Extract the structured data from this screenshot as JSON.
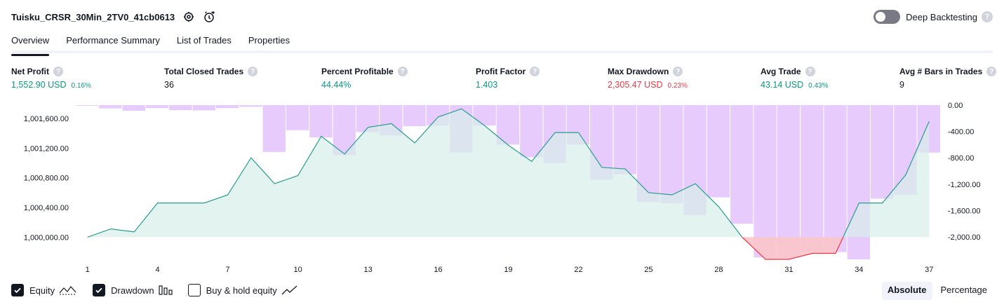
{
  "header": {
    "title": "Tuisku_CRSR_30Min_2TV0_41cb0613",
    "deep_backtesting_label": "Deep Backtesting",
    "deep_backtesting_enabled": false,
    "help_glyph": "?"
  },
  "tabs": [
    {
      "label": "Overview",
      "active": true
    },
    {
      "label": "Performance Summary",
      "active": false
    },
    {
      "label": "List of Trades",
      "active": false
    },
    {
      "label": "Properties",
      "active": false
    }
  ],
  "metrics": [
    {
      "label": "Net Profit",
      "value": "1,552.90 USD",
      "pct": "0.16%",
      "color": "green"
    },
    {
      "label": "Total Closed Trades",
      "value": "36",
      "pct": "",
      "color": "dark"
    },
    {
      "label": "Percent Profitable",
      "value": "44.44%",
      "pct": "",
      "color": "green"
    },
    {
      "label": "Profit Factor",
      "value": "1.403",
      "pct": "",
      "color": "green"
    },
    {
      "label": "Max Drawdown",
      "value": "2,305.47 USD",
      "pct": "0.23%",
      "color": "red"
    },
    {
      "label": "Avg Trade",
      "value": "43.14 USD",
      "pct": "0.43%",
      "color": "green"
    },
    {
      "label": "Avg # Bars in Trades",
      "value": "9",
      "pct": "",
      "color": "dark"
    }
  ],
  "chart_data": {
    "type": "line",
    "x_ticks": [
      "1",
      "4",
      "7",
      "10",
      "13",
      "16",
      "19",
      "22",
      "25",
      "28",
      "31",
      "34",
      "37"
    ],
    "left_axis": {
      "ticks": [
        "1,000,000.00",
        "1,000,400.00",
        "1,000,800.00",
        "1,001,200.00",
        "1,001,600.00"
      ],
      "ylim": [
        999700,
        1001780
      ]
    },
    "right_axis": {
      "ticks": [
        "0.00",
        "-400.00",
        "-800.00",
        "-1,200.00",
        "-1,600.00",
        "-2,000.00"
      ],
      "ylim": [
        -2340,
        0
      ]
    },
    "baseline": 1000000,
    "series": [
      {
        "name": "Equity",
        "axis": "left",
        "x": [
          1,
          2,
          3,
          4,
          5,
          6,
          7,
          8,
          9,
          10,
          11,
          12,
          13,
          14,
          15,
          16,
          17,
          18,
          19,
          20,
          21,
          22,
          23,
          24,
          25,
          26,
          27,
          28,
          29,
          30,
          31,
          32,
          33,
          34,
          35,
          36,
          37
        ],
        "values": [
          1000000,
          1000110,
          1000070,
          1000460,
          1000460,
          1000460,
          1000570,
          1001070,
          1000720,
          1000830,
          1001360,
          1001120,
          1001480,
          1001530,
          1001270,
          1001620,
          1001730,
          1001500,
          1001240,
          1001020,
          1001410,
          1001410,
          1000940,
          1000920,
          1000600,
          1000570,
          1000720,
          1000410,
          1000000,
          999700,
          999700,
          999780,
          999780,
          1000460,
          1000460,
          1000840,
          1001560
        ]
      },
      {
        "name": "Drawdown",
        "axis": "right",
        "type": "bar",
        "x": [
          1,
          2,
          3,
          4,
          5,
          6,
          7,
          8,
          9,
          10,
          11,
          12,
          13,
          14,
          15,
          16,
          17,
          18,
          19,
          20,
          21,
          22,
          23,
          24,
          25,
          26,
          27,
          28,
          29,
          30,
          31,
          32,
          33,
          34,
          35,
          36,
          37
        ],
        "values": [
          0,
          -50,
          -85,
          -45,
          -75,
          -80,
          -45,
          -25,
          -710,
          -380,
          -490,
          -760,
          -410,
          -460,
          -320,
          -310,
          -720,
          -310,
          -600,
          -790,
          -880,
          -600,
          -1130,
          -1050,
          -1470,
          -1490,
          -1670,
          -1400,
          -1800,
          -2310,
          -2310,
          -2230,
          -2230,
          -2340,
          -1420,
          -1360,
          -720
        ]
      }
    ]
  },
  "legend": {
    "equity": {
      "label": "Equity",
      "checked": true
    },
    "drawdown": {
      "label": "Drawdown",
      "checked": true
    },
    "buyhold": {
      "label": "Buy & hold equity",
      "checked": false
    }
  },
  "view_toggle": {
    "absolute": "Absolute",
    "percentage": "Percentage",
    "active": "absolute"
  },
  "colors": {
    "equity_line": "#2a9d8f",
    "equity_fill": "#d7f0ea",
    "drawdown_bar": "#e2c2fb",
    "loss_line": "#f23645",
    "loss_fill": "#fbc5cb",
    "green": "#089981",
    "red": "#f23645"
  }
}
